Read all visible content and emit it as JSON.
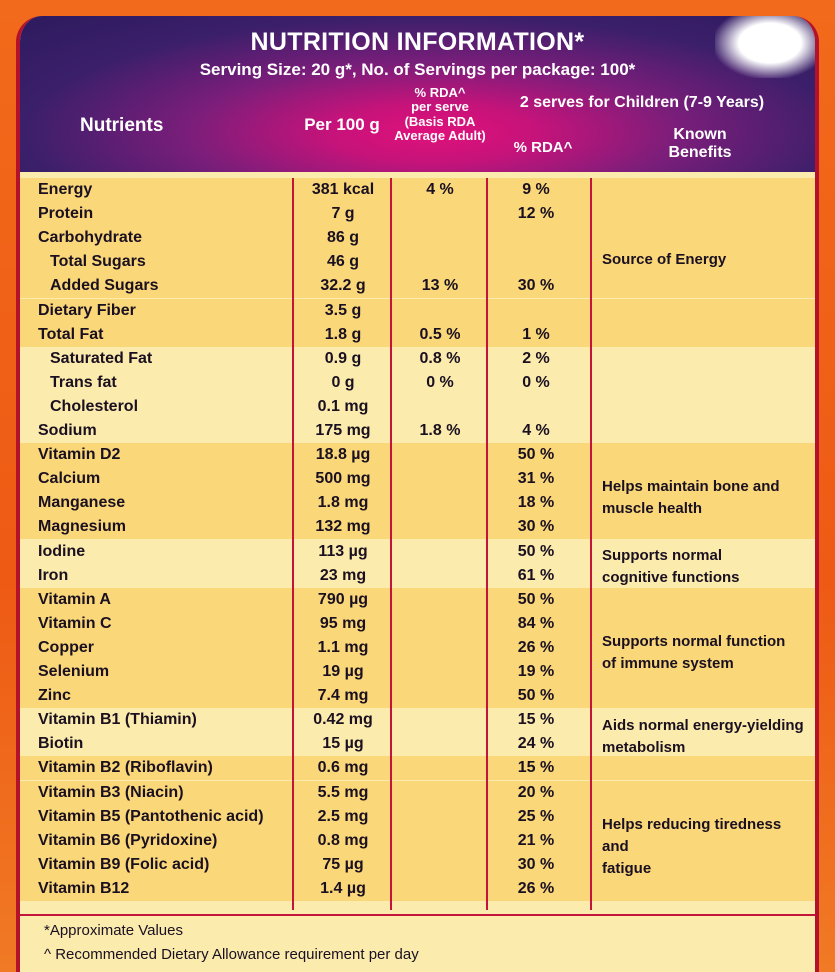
{
  "header": {
    "title": "NUTRITION INFORMATION*",
    "subtitle": "Serving Size: 20 g*, No. of Servings per package: 100*",
    "col_nutrients": "Nutrients",
    "col_per100": "Per 100 g",
    "col_rda_line1": "% RDA^",
    "col_rda_line2": "per serve",
    "col_rda_line3": "(Basis RDA",
    "col_rda_line4": "Average Adult)",
    "col_children": "2 serves for Children (7-9 Years)",
    "col_children_rda": "% RDA^",
    "col_known_line1": "Known",
    "col_known_line2": "Benefits"
  },
  "rows": [
    {
      "name": "Energy",
      "per100": "381 kcal",
      "rda": "4 %",
      "child": "9 %",
      "indent": false
    },
    {
      "name": "Protein",
      "per100": "7 g",
      "rda": "",
      "child": "12 %",
      "indent": false
    },
    {
      "name": "Carbohydrate",
      "per100": "86 g",
      "rda": "",
      "child": "",
      "indent": false
    },
    {
      "name": "Total Sugars",
      "per100": "46 g",
      "rda": "",
      "child": "",
      "indent": true
    },
    {
      "name": "Added Sugars",
      "per100": "32.2 g",
      "rda": "13 %",
      "child": "30 %",
      "indent": true
    },
    {
      "name": "Dietary Fiber",
      "per100": "3.5 g",
      "rda": "",
      "child": "",
      "indent": false
    },
    {
      "name": "Total Fat",
      "per100": "1.8 g",
      "rda": "0.5 %",
      "child": "1 %",
      "indent": false
    },
    {
      "name": "Saturated Fat",
      "per100": "0.9 g",
      "rda": "0.8 %",
      "child": "2 %",
      "indent": true
    },
    {
      "name": "Trans fat",
      "per100": "0 g",
      "rda": "0 %",
      "child": "0 %",
      "indent": true
    },
    {
      "name": "Cholesterol",
      "per100": "0.1 mg",
      "rda": "",
      "child": "",
      "indent": true
    },
    {
      "name": "Sodium",
      "per100": "175 mg",
      "rda": "1.8 %",
      "child": "4 %",
      "indent": false
    },
    {
      "name": "Vitamin D2",
      "per100": "18.8 µg",
      "rda": "",
      "child": "50 %",
      "indent": false
    },
    {
      "name": "Calcium",
      "per100": "500 mg",
      "rda": "",
      "child": "31 %",
      "indent": false
    },
    {
      "name": "Manganese",
      "per100": "1.8 mg",
      "rda": "",
      "child": "18 %",
      "indent": false
    },
    {
      "name": "Magnesium",
      "per100": "132 mg",
      "rda": "",
      "child": "30 %",
      "indent": false
    },
    {
      "name": "Iodine",
      "per100": "113 µg",
      "rda": "",
      "child": "50 %",
      "indent": false
    },
    {
      "name": "Iron",
      "per100": "23 mg",
      "rda": "",
      "child": "61 %",
      "indent": false
    },
    {
      "name": "Vitamin A",
      "per100": "790 µg",
      "rda": "",
      "child": "50 %",
      "indent": false
    },
    {
      "name": "Vitamin C",
      "per100": "95 mg",
      "rda": "",
      "child": "84 %",
      "indent": false
    },
    {
      "name": "Copper",
      "per100": "1.1 mg",
      "rda": "",
      "child": "26 %",
      "indent": false
    },
    {
      "name": "Selenium",
      "per100": "19 µg",
      "rda": "",
      "child": "19 %",
      "indent": false
    },
    {
      "name": "Zinc",
      "per100": "7.4 mg",
      "rda": "",
      "child": "50 %",
      "indent": false
    },
    {
      "name": "Vitamin B1 (Thiamin)",
      "per100": "0.42 mg",
      "rda": "",
      "child": "15 %",
      "indent": false
    },
    {
      "name": "Biotin",
      "per100": "15 µg",
      "rda": "",
      "child": "24 %",
      "indent": false
    },
    {
      "name": "Vitamin B2 (Riboflavin)",
      "per100": "0.6 mg",
      "rda": "",
      "child": "15 %",
      "indent": false
    },
    {
      "name": "Vitamin B3 (Niacin)",
      "per100": "5.5 mg",
      "rda": "",
      "child": "20 %",
      "indent": false
    },
    {
      "name": "Vitamin B5 (Pantothenic acid)",
      "per100": "2.5 mg",
      "rda": "",
      "child": "25 %",
      "indent": false
    },
    {
      "name": "Vitamin B6 (Pyridoxine)",
      "per100": "0.8 mg",
      "rda": "",
      "child": "21 %",
      "indent": false
    },
    {
      "name": "Vitamin B9 (Folic acid)",
      "per100": "75 µg",
      "rda": "",
      "child": "30 %",
      "indent": false
    },
    {
      "name": "Vitamin B12",
      "per100": "1.4 µg",
      "rda": "",
      "child": "26 %",
      "indent": false
    }
  ],
  "benefits": {
    "energy": "Source of Energy",
    "bone_line1": "Helps maintain bone and",
    "bone_line2": "muscle health",
    "cognitive_line1": "Supports normal",
    "cognitive_line2": "cognitive functions",
    "immune_line1": "Supports normal function",
    "immune_line2": "of immune system",
    "metabolism_line1": "Aids normal energy-yielding",
    "metabolism_line2": "metabolism",
    "tiredness_line1": "Helps reducing tiredness and",
    "tiredness_line2": "fatigue"
  },
  "footer": {
    "note1": "*Approximate Values",
    "note2": "^ Recommended Dietary Allowance requirement per day"
  },
  "colors": {
    "header_purple": "#2d1a5e",
    "header_pink": "#e0117b",
    "band_dark": "#fad87a",
    "band_light": "#fbecae",
    "rule_red": "#c4143a",
    "outer_orange": "#f26a1b"
  }
}
